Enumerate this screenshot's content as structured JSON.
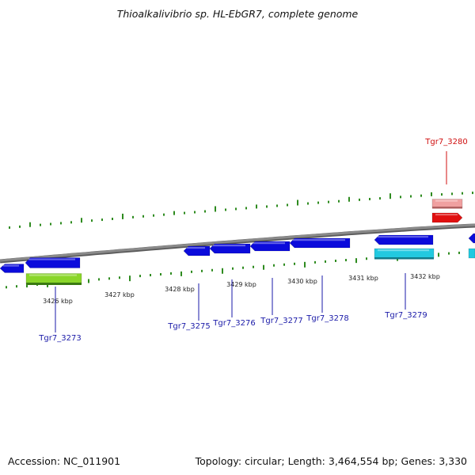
{
  "title": "Thioalkalivibrio sp. HL-EbGR7, complete genome",
  "footer": {
    "accession": "Accession: NC_011901",
    "summary": "Topology: circular; Length: 3,464,554 bp; Genes: 3,330"
  },
  "colors": {
    "backbone": "#8a8a8a",
    "gc_ticks": "#2e8b1f",
    "forward_cds": "#0b0bdb",
    "reverse_feature": "#22c9e0",
    "highlight_gene": "#e01010",
    "highlight_gene_light": "#f0a0a0",
    "green_feature": "#8ad62a",
    "label_default": "#1a1aa8",
    "label_highlight": "#d01010"
  },
  "scale": {
    "unit": "kbp",
    "labels": [
      "3426 kbp",
      "3427 kbp",
      "3428 kbp",
      "3429 kbp",
      "3430 kbp",
      "3431 kbp",
      "3432 kbp"
    ]
  },
  "genes": [
    {
      "name": "Tgr7_3273",
      "color": "label_default"
    },
    {
      "name": "Tgr7_3275",
      "color": "label_default"
    },
    {
      "name": "Tgr7_3276",
      "color": "label_default"
    },
    {
      "name": "Tgr7_3277",
      "color": "label_default"
    },
    {
      "name": "Tgr7_3278",
      "color": "label_default"
    },
    {
      "name": "Tgr7_3279",
      "color": "label_default"
    },
    {
      "name": "Tgr7_3280",
      "color": "label_highlight"
    }
  ]
}
